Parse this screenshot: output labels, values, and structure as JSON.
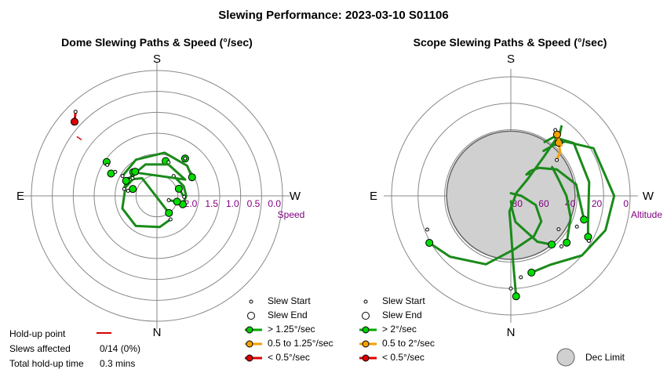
{
  "title": "Slewing Performance: 2023-03-10 S01106",
  "colors": {
    "green": "#00aa00",
    "green_line": "#1a8a1a",
    "orange": "#f5a000",
    "red": "#dd0000",
    "purple": "#800080",
    "grid": "#888888",
    "dec_limit": "#d0d0d0"
  },
  "chart_data": [
    {
      "type": "polar-scatter-line",
      "title": "Dome Slewing Paths & Speed (°/sec)",
      "compass": {
        "top": "S",
        "bottom": "N",
        "left": "E",
        "right": "W"
      },
      "radial_axis": {
        "label": "Speed",
        "reversed": true,
        "range": [
          3.0,
          0.0
        ],
        "ticks": [
          "2.0",
          "1.5",
          "1.0",
          "0.5",
          "0.0"
        ],
        "tick_values": [
          2.0,
          1.5,
          1.0,
          0.5,
          0.0
        ]
      },
      "hold_up_point": {
        "azimuth_deg": 316,
        "speed": 0.3
      },
      "slews": [
        {
          "speed_class": "fast",
          "start": {
            "az": 19,
            "speed": 2.15
          },
          "end": {
            "az": 14,
            "speed": 2.14
          },
          "path": [
            [
              14,
              2.14
            ],
            [
              19,
              2.15
            ]
          ]
        },
        {
          "speed_class": "fast",
          "start": {
            "az": 150,
            "speed": 2.35
          },
          "end": {
            "az": 145,
            "speed": 2.5
          },
          "path": [
            [
              150,
              2.35
            ],
            [
              175,
              2.25
            ],
            [
              215,
              2.12
            ],
            [
              250,
              2.12
            ],
            [
              285,
              2.22
            ],
            [
              305,
              2.3
            ],
            [
              320,
              2.45
            ],
            [
              145,
              2.5
            ]
          ]
        },
        {
          "speed_class": "fast",
          "start": {
            "az": 40,
            "speed": 2.38
          },
          "end": {
            "az": 108,
            "speed": 2.35
          },
          "path": [
            [
              40,
              2.38
            ],
            [
              70,
              2.32
            ],
            [
              90,
              2.3
            ],
            [
              108,
              2.35
            ]
          ]
        },
        {
          "speed_class": "fast",
          "start": {
            "az": 37,
            "speed": 1.88
          },
          "end": {
            "az": 37,
            "speed": 1.88
          },
          "path": [
            [
              37,
              1.88
            ],
            [
              38,
              1.9
            ]
          ]
        },
        {
          "speed_class": "fast",
          "start": {
            "az": 300,
            "speed": 2.05
          },
          "end": {
            "az": 62,
            "speed": 2.05
          },
          "path": [
            [
              300,
              2.05
            ],
            [
              330,
              2.0
            ],
            [
              10,
              1.95
            ],
            [
              45,
              1.98
            ],
            [
              62,
              2.05
            ]
          ]
        },
        {
          "speed_class": "fast",
          "start": {
            "az": 300,
            "speed": 2.2
          },
          "end": {
            "az": 315,
            "speed": 2.2
          },
          "path": [
            [
              300,
              2.2
            ],
            [
              340,
              2.2
            ],
            [
              20,
              2.2
            ],
            [
              60,
              2.22
            ],
            [
              315,
              2.2
            ]
          ]
        },
        {
          "speed_class": "fast",
          "start": {
            "az": 110,
            "speed": 2.7
          },
          "end": {
            "az": 106,
            "speed": 2.5
          },
          "path": [
            [
              110,
              2.7
            ],
            [
              106,
              2.5
            ]
          ]
        },
        {
          "speed_class": "fast",
          "start": {
            "az": 92,
            "speed": 2.35
          },
          "end": {
            "az": 72,
            "speed": 2.45
          },
          "path": [
            [
              92,
              2.35
            ],
            [
              72,
              2.45
            ]
          ]
        },
        {
          "speed_class": "fast",
          "start": {
            "az": 280,
            "speed": 2.3
          },
          "end": {
            "az": 286,
            "speed": 2.4
          },
          "path": [
            [
              280,
              2.3
            ],
            [
              283,
              2.34
            ],
            [
              286,
              2.4
            ]
          ]
        },
        {
          "speed_class": "fast",
          "start": {
            "az": 282,
            "speed": 2.2
          },
          "end": {
            "az": 296,
            "speed": 2.18
          },
          "path": [
            [
              282,
              2.2
            ],
            [
              296,
              2.18
            ]
          ]
        },
        {
          "speed_class": "fast",
          "start": {
            "az": 306,
            "speed": 2.28
          },
          "end": {
            "az": 318,
            "speed": 2.22
          },
          "path": [
            [
              306,
              2.28
            ],
            [
              318,
              2.22
            ]
          ]
        },
        {
          "speed_class": "fast",
          "start": {
            "az": 300,
            "speed": 1.85
          },
          "end": {
            "az": 296,
            "speed": 1.78
          },
          "path": [
            [
              300,
              1.85
            ],
            [
              296,
              1.78
            ]
          ]
        },
        {
          "speed_class": "fast",
          "start": {
            "az": 302,
            "speed": 1.6
          },
          "end": {
            "az": 304,
            "speed": 1.55
          },
          "path": [
            [
              302,
              1.6
            ],
            [
              304,
              1.55
            ]
          ]
        },
        {
          "speed_class": "slow",
          "start": {
            "az": 316,
            "speed": 0.2
          },
          "end": {
            "az": 312,
            "speed": 0.35
          },
          "path": [
            [
              316,
              0.2
            ],
            [
              312,
              0.35
            ]
          ]
        }
      ],
      "legend": [
        {
          "label": "Slew Start",
          "marker": "small-circle"
        },
        {
          "label": "Slew End",
          "marker": "large-circle"
        },
        {
          "label": "> 1.25°/sec",
          "color": "#00aa00"
        },
        {
          "label": "0.5 to 1.25°/sec",
          "color": "#f5a000"
        },
        {
          "label": "< 0.5°/sec",
          "color": "#dd0000"
        }
      ],
      "holdup_stats": {
        "hold_up_point_label": "Hold-up point",
        "slews_affected_label": "Slews affected",
        "slews_affected": "0/14 (0%)",
        "total_time_label": "Total hold-up time",
        "total_time": "0.3 mins"
      }
    },
    {
      "type": "polar-scatter-line",
      "title": "Scope Slewing Paths & Speed (°/sec)",
      "compass": {
        "top": "S",
        "bottom": "N",
        "left": "E",
        "right": "W"
      },
      "radial_axis": {
        "label": "Altitude",
        "reversed": true,
        "range": [
          90,
          0
        ],
        "ticks": [
          "80",
          "60",
          "40",
          "20",
          "0"
        ],
        "tick_values": [
          80,
          60,
          40,
          20,
          0
        ]
      },
      "dec_limit": {
        "center_az": 0,
        "center_alt": 54,
        "radius_deg": 19
      },
      "slews": [
        {
          "speed_class": "fast",
          "start": {
            "az": 180,
            "alt": 20
          },
          "end": {
            "az": 177,
            "alt": 14
          },
          "path": [
            [
              177,
              14
            ],
            [
              178,
              40
            ],
            [
              180,
              65
            ],
            [
              185,
              78
            ],
            [
              60,
              85
            ],
            [
              45,
              72
            ],
            [
              40,
              50
            ],
            [
              38,
              30
            ],
            [
              36,
              25
            ]
          ]
        },
        {
          "speed_class": "fast",
          "start": {
            "az": 173,
            "alt": 28
          },
          "end": {
            "az": 165,
            "alt": 30
          },
          "path": [
            [
              165,
              30
            ],
            [
              150,
              30
            ],
            [
              130,
              20
            ],
            [
              110,
              14
            ],
            [
              90,
              12
            ],
            [
              60,
              18
            ],
            [
              45,
              32
            ],
            [
              40,
              40
            ],
            [
              36,
              48
            ]
          ]
        },
        {
          "speed_class": "fast",
          "start": {
            "az": 248,
            "alt": 22
          },
          "end": {
            "az": 240,
            "alt": 19
          },
          "path": [
            [
              240,
              19
            ],
            [
              225,
              25
            ],
            [
              200,
              35
            ],
            [
              175,
              50
            ],
            [
              150,
              55
            ],
            [
              130,
              60
            ],
            [
              110,
              70
            ],
            [
              90,
              82
            ],
            [
              0,
              88
            ]
          ]
        },
        {
          "speed_class": "fast",
          "start": {
            "az": 115,
            "alt": 35
          },
          "end": {
            "az": 108,
            "alt": 32
          },
          "path": [
            [
              108,
              32
            ],
            [
              80,
              40
            ],
            [
              60,
              50
            ],
            [
              45,
              60
            ],
            [
              38,
              66
            ],
            [
              36,
              70
            ],
            [
              40,
              68
            ]
          ]
        },
        {
          "speed_class": "fast",
          "start": {
            "az": 120,
            "alt": 22
          },
          "end": {
            "az": 118,
            "alt": 24
          },
          "path": [
            [
              118,
              24
            ],
            [
              110,
              28
            ],
            [
              80,
              30
            ],
            [
              50,
              28
            ],
            [
              36,
              35
            ],
            [
              32,
              42
            ]
          ]
        },
        {
          "speed_class": "fast",
          "start": {
            "az": 135,
            "alt": 36
          },
          "end": {
            "az": 130,
            "alt": 35
          },
          "path": [
            [
              130,
              35
            ],
            [
              110,
              42
            ],
            [
              90,
              48
            ],
            [
              70,
              52
            ],
            [
              55,
              52
            ]
          ]
        },
        {
          "speed_class": "fast",
          "start": {
            "az": 125,
            "alt": 46
          },
          "end": {
            "az": 140,
            "alt": 42
          },
          "path": [
            [
              140,
              42
            ],
            [
              150,
              50
            ],
            [
              170,
              70
            ],
            [
              175,
              80
            ],
            [
              178,
              86
            ]
          ]
        },
        {
          "speed_class": "medium",
          "start": {
            "az": 52,
            "alt": 46
          },
          "end": {
            "az": 42,
            "alt": 36
          },
          "path": [
            [
              52,
              46
            ],
            [
              48,
              40
            ],
            [
              42,
              36
            ],
            [
              38,
              34
            ],
            [
              36,
              33
            ]
          ]
        },
        {
          "speed_class": "medium",
          "start": {
            "az": 34,
            "alt": 30
          },
          "end": {
            "az": 37,
            "alt": 32
          },
          "path": [
            [
              34,
              30
            ],
            [
              37,
              32
            ],
            [
              40,
              34
            ],
            [
              45,
              36
            ]
          ]
        }
      ],
      "legend": [
        {
          "label": "Slew Start",
          "marker": "small-circle"
        },
        {
          "label": "Slew End",
          "marker": "large-circle"
        },
        {
          "label": "> 2°/sec",
          "color": "#00aa00"
        },
        {
          "label": "0.5 to 2°/sec",
          "color": "#f5a000"
        },
        {
          "label": "< 0.5°/sec",
          "color": "#dd0000"
        },
        {
          "label": "Dec Limit",
          "color": "#d0d0d0"
        }
      ]
    }
  ]
}
